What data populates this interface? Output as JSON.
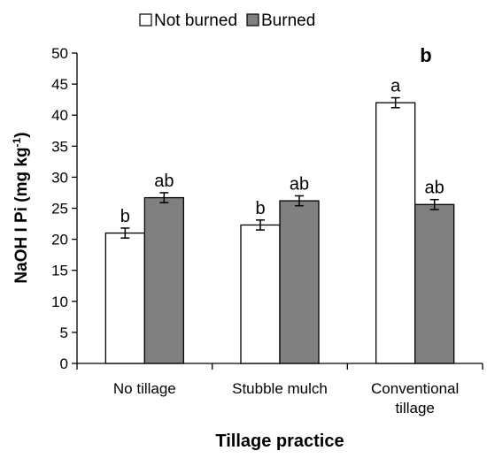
{
  "chart_data": {
    "type": "bar",
    "panel_label": "b",
    "title": "",
    "xlabel": "Tillage practice",
    "ylabel_main": "NaOH I Pi (mg kg",
    "ylabel_sup": "-1",
    "ylabel_end": ")",
    "ylim": [
      0,
      50
    ],
    "yticks": [
      0,
      5,
      10,
      15,
      20,
      25,
      30,
      35,
      40,
      45,
      50
    ],
    "grid": false,
    "legend_position": "top",
    "categories": [
      [
        "No tillage"
      ],
      [
        "Stubble mulch"
      ],
      [
        "Conventional",
        "tillage"
      ]
    ],
    "series": [
      {
        "name": "Not burned",
        "color": "#ffffff",
        "values": [
          21.0,
          22.3,
          42.0
        ],
        "errors": [
          0.8,
          0.8,
          0.8
        ],
        "letters": [
          "b",
          "b",
          "a"
        ]
      },
      {
        "name": "Burned",
        "color": "#808080",
        "values": [
          26.7,
          26.2,
          25.6
        ],
        "errors": [
          0.8,
          0.8,
          0.8
        ],
        "letters": [
          "ab",
          "ab",
          "ab"
        ]
      }
    ]
  }
}
